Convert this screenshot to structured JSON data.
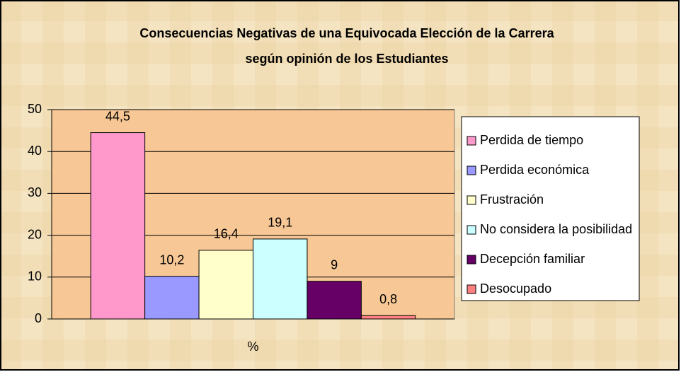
{
  "chart_data": {
    "type": "bar",
    "title": [
      "Consecuencias Negativas de una Equivocada Elección de la Carrera",
      "según opinión de los Estudiantes"
    ],
    "categories": [
      "%"
    ],
    "series": [
      {
        "name": "Perdida de tiempo",
        "color": "#ff99cc",
        "values": [
          44.5
        ],
        "value_labels": [
          "44,5"
        ]
      },
      {
        "name": "Perdida económica",
        "color": "#9999ff",
        "values": [
          10.2
        ],
        "value_labels": [
          "10,2"
        ]
      },
      {
        "name": "Frustración",
        "color": "#ffffcc",
        "values": [
          16.4
        ],
        "value_labels": [
          "16,4"
        ]
      },
      {
        "name": "No considera la posibilidad",
        "color": "#ccffff",
        "values": [
          19.1
        ],
        "value_labels": [
          "19,1"
        ]
      },
      {
        "name": "Decepción familiar",
        "color": "#660066",
        "values": [
          9
        ],
        "value_labels": [
          "9"
        ]
      },
      {
        "name": "Desocupado",
        "color": "#ff8080",
        "values": [
          0.8
        ],
        "value_labels": [
          "0,8"
        ]
      }
    ],
    "ylim": [
      0,
      50
    ],
    "yticks": [
      0,
      10,
      20,
      30,
      40,
      50
    ],
    "grid": true,
    "legend": "right",
    "plot_background": "#f7c795"
  }
}
